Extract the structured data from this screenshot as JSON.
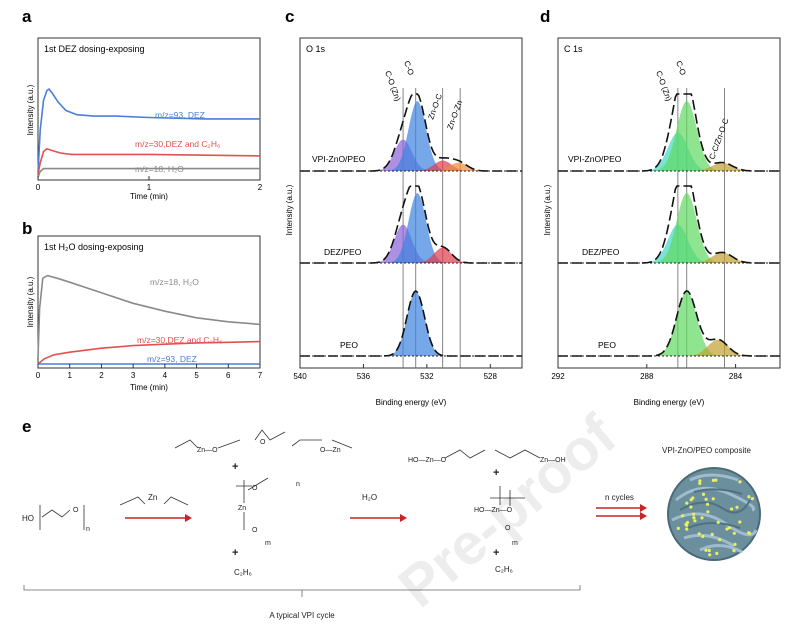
{
  "panel_letters": {
    "a": "a",
    "b": "b",
    "c": "c",
    "d": "d",
    "e": "e"
  },
  "colors": {
    "blue": "#4a7fd8",
    "red": "#e0524f",
    "gray": "#8a8a8a",
    "arrow": "#cc2222"
  },
  "chart_data": [
    {
      "id": "a",
      "type": "line",
      "title": "1st DEZ dosing-exposing",
      "xlabel": "Time (min)",
      "ylabel": "Intensity (a.u.)",
      "xlim": [
        0,
        2
      ],
      "ylim": [
        0,
        10
      ],
      "xticks": [
        0,
        1,
        2
      ],
      "series": [
        {
          "name": "m/z=93, DEZ",
          "color": "#4a7fd8",
          "x": [
            0,
            0.02,
            0.05,
            0.08,
            0.1,
            0.13,
            0.18,
            0.25,
            0.35,
            0.5,
            0.7,
            1.0,
            1.5,
            2.0
          ],
          "y": [
            0.5,
            3.5,
            5.6,
            6.3,
            6.4,
            6.1,
            5.5,
            4.9,
            4.6,
            4.5,
            4.5,
            4.4,
            4.3,
            4.3
          ]
        },
        {
          "name": "m/z=30,DEZ and C₂H₆",
          "color": "#e0524f",
          "x": [
            0,
            0.02,
            0.05,
            0.08,
            0.12,
            0.2,
            0.3,
            0.5,
            1.0,
            1.5,
            2.0
          ],
          "y": [
            0.4,
            1.2,
            2.0,
            2.2,
            2.1,
            1.9,
            1.8,
            1.8,
            1.8,
            1.75,
            1.7
          ]
        },
        {
          "name": "m/z=18, H₂O",
          "color": "#8a8a8a",
          "x": [
            0,
            0.02,
            0.05,
            0.2,
            1.0,
            2.0
          ],
          "y": [
            0.2,
            0.6,
            0.8,
            0.8,
            0.8,
            0.8
          ]
        }
      ]
    },
    {
      "id": "b",
      "type": "line",
      "title": "1st H₂O dosing-exposing",
      "xlabel": "Time (min)",
      "ylabel": "Intensity (a.u.)",
      "xlim": [
        0,
        7
      ],
      "ylim": [
        0,
        10
      ],
      "xticks": [
        0,
        1,
        2,
        3,
        4,
        5,
        6,
        7
      ],
      "series": [
        {
          "name": "m/z=18, H₂O",
          "color": "#8a8a8a",
          "x": [
            0,
            0.05,
            0.15,
            0.3,
            0.6,
            1,
            1.5,
            2,
            3,
            4,
            5,
            6,
            7
          ],
          "y": [
            0.8,
            4.5,
            6.8,
            7.0,
            6.8,
            6.5,
            6.1,
            5.7,
            4.9,
            4.3,
            3.8,
            3.5,
            3.3
          ]
        },
        {
          "name": "m/z=30,DEZ and C₂H₆",
          "color": "#e0524f",
          "x": [
            0,
            0.2,
            0.5,
            1,
            2,
            3,
            4,
            5,
            6,
            7
          ],
          "y": [
            0.3,
            0.7,
            1.0,
            1.2,
            1.5,
            1.7,
            1.8,
            1.9,
            1.95,
            2.0
          ]
        },
        {
          "name": "m/z=93, DEZ",
          "color": "#4a7fd8",
          "x": [
            0,
            1,
            7
          ],
          "y": [
            0.3,
            0.3,
            0.3
          ]
        }
      ]
    },
    {
      "id": "c",
      "type": "area",
      "title": "O 1s",
      "xlabel": "Binding energy (eV)",
      "ylabel": "Intensity (a.u.)",
      "xlim": [
        540,
        526
      ],
      "xticks": [
        540,
        536,
        532,
        528
      ],
      "samples": [
        "VPI-ZnO/PEO",
        "DEZ/PEO",
        "PEO"
      ],
      "peak_labels": [
        "C-O (Zn)",
        "C-O",
        "Zn-O-C",
        "Zn-O-Zn"
      ],
      "reference_lines": [
        533.5,
        532.7,
        531.0,
        529.9
      ],
      "components": [
        {
          "sample": "VPI-ZnO/PEO",
          "peaks": [
            {
              "center": 533.5,
              "height": 0.45,
              "color": "#8a60d8"
            },
            {
              "center": 532.6,
              "height": 1.0,
              "color": "#3b82e0"
            },
            {
              "center": 531.0,
              "height": 0.15,
              "color": "#e03a4a"
            },
            {
              "center": 530.0,
              "height": 0.12,
              "color": "#f08a3a"
            }
          ]
        },
        {
          "sample": "DEZ/PEO",
          "peaks": [
            {
              "center": 533.5,
              "height": 0.55,
              "color": "#8a60d8"
            },
            {
              "center": 532.6,
              "height": 1.0,
              "color": "#3b82e0"
            },
            {
              "center": 531.0,
              "height": 0.22,
              "color": "#e03a4a"
            }
          ]
        },
        {
          "sample": "PEO",
          "peaks": [
            {
              "center": 532.7,
              "height": 1.0,
              "color": "#3b82e0"
            }
          ]
        }
      ]
    },
    {
      "id": "d",
      "type": "area",
      "title": "C 1s",
      "xlabel": "Binding energy (eV)",
      "ylabel": "Intensity (a.u.)",
      "xlim": [
        292,
        282
      ],
      "xticks": [
        292,
        288,
        284
      ],
      "samples": [
        "VPI-ZnO/PEO",
        "DEZ/PEO",
        "PEO"
      ],
      "peak_labels": [
        "C-O (Zn)",
        "C-O",
        "C-C/Zn-O-C"
      ],
      "reference_lines": [
        286.6,
        286.2,
        284.5
      ],
      "components": [
        {
          "sample": "VPI-ZnO/PEO",
          "peaks": [
            {
              "center": 286.6,
              "height": 0.55,
              "color": "#3fd8c8"
            },
            {
              "center": 286.2,
              "height": 1.0,
              "color": "#5fd860"
            },
            {
              "center": 284.6,
              "height": 0.12,
              "color": "#c0a030"
            }
          ]
        },
        {
          "sample": "DEZ/PEO",
          "peaks": [
            {
              "center": 286.6,
              "height": 0.55,
              "color": "#3fd8c8"
            },
            {
              "center": 286.2,
              "height": 1.0,
              "color": "#5fd860"
            },
            {
              "center": 284.6,
              "height": 0.15,
              "color": "#c0a030"
            }
          ]
        },
        {
          "sample": "PEO",
          "peaks": [
            {
              "center": 286.2,
              "height": 1.0,
              "color": "#5fd860"
            },
            {
              "center": 284.8,
              "height": 0.25,
              "color": "#c0a030"
            }
          ]
        }
      ]
    }
  ],
  "scheme": {
    "composite_title": "VPI-ZnO/PEO composite",
    "water": "H₂O",
    "cycles": "n cycles",
    "byproduct1": "C₂H₆",
    "byproduct2": "C₂H₆",
    "cycle_label": "A typical VPI cycle",
    "reactant_peo": "HO",
    "dez": "Zn",
    "plus": "+"
  },
  "watermark": "Pre-proof"
}
